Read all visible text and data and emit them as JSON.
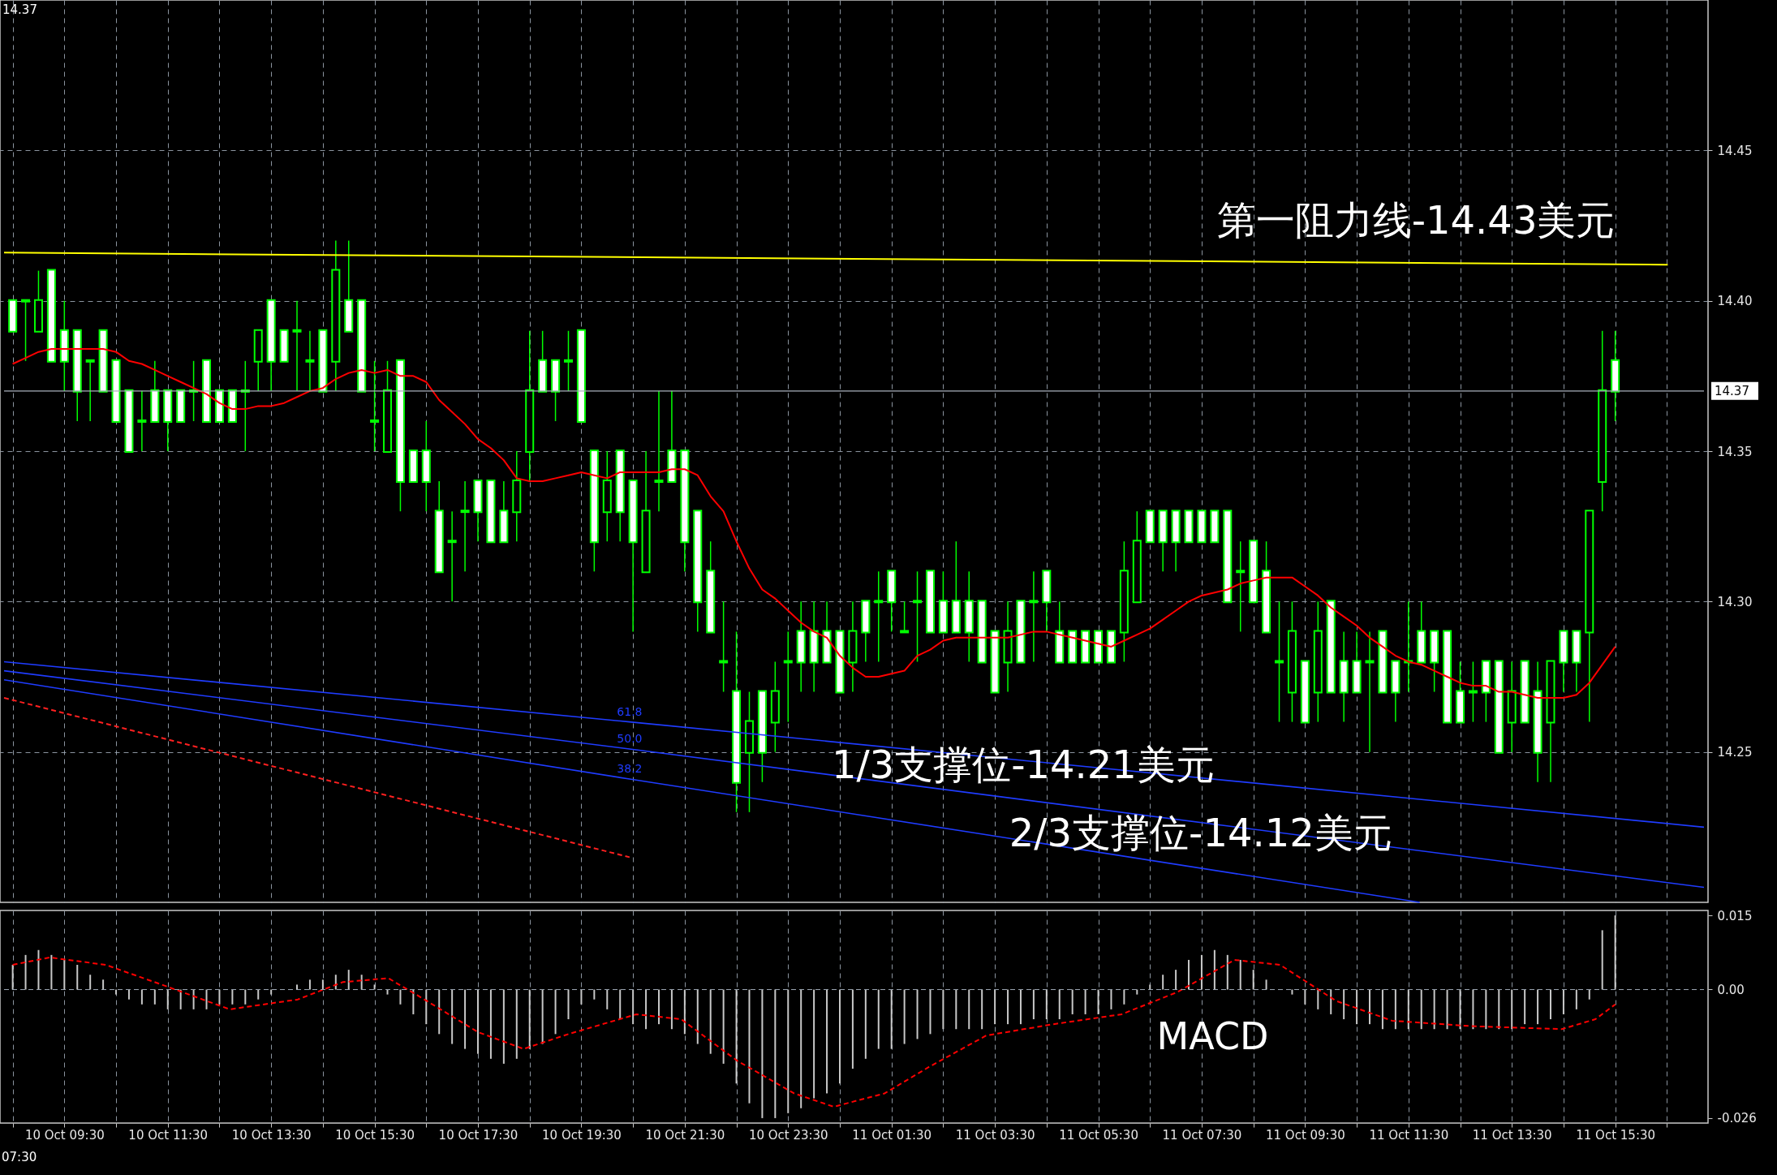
{
  "chart_data": [
    {
      "type": "candlestick",
      "x": [
        "--10-10T08:30",
        "--10-10T08:45",
        "--10-10T09:00",
        "--10-10T09:15",
        "--10-10T09:30",
        "--10-10T09:45",
        "--10-10T10:00",
        "--10-10T10:15",
        "--10-10T10:30",
        "--10-10T10:45",
        "--10-10T11:00",
        "--10-10T11:15",
        "--10-10T11:30",
        "--10-10T11:45",
        "--10-10T12:00",
        "--10-10T12:15",
        "--10-10T12:30",
        "--10-10T12:45",
        "--10-10T13:00",
        "--10-10T13:15",
        "--10-10T13:30",
        "--10-10T13:45",
        "--10-10T14:00",
        "--10-10T14:15",
        "--10-10T14:30",
        "--10-10T14:45",
        "--10-10T15:00",
        "--10-10T15:15",
        "--10-10T15:30",
        "--10-10T15:45",
        "--10-10T16:00",
        "--10-10T16:15",
        "--10-10T16:30",
        "--10-10T16:45",
        "--10-10T17:00",
        "--10-10T17:15",
        "--10-10T17:30",
        "--10-10T17:45",
        "--10-10T18:00",
        "--10-10T18:15",
        "--10-10T18:30",
        "--10-10T18:45",
        "--10-10T19:00",
        "--10-10T19:15",
        "--10-10T19:30",
        "--10-10T19:45",
        "--10-10T20:00",
        "--10-10T20:15",
        "--10-10T20:30",
        "--10-10T20:45",
        "--10-10T21:00",
        "--10-10T21:15",
        "--10-10T21:30",
        "--10-10T21:45",
        "--10-10T22:00",
        "--10-10T22:15",
        "--10-10T22:30",
        "--10-10T22:45",
        "--10-10T23:00",
        "--10-10T23:15",
        "--10-10T23:30",
        "--10-10T23:45",
        "--10-11T00:00",
        "--10-11T00:15",
        "--10-11T00:30",
        "--10-11T00:45",
        "--10-11T01:00",
        "--10-11T01:15",
        "--10-11T01:30",
        "--10-11T01:45",
        "--10-11T02:00",
        "--10-11T02:15",
        "--10-11T02:30",
        "--10-11T02:45",
        "--10-11T03:00",
        "--10-11T03:15",
        "--10-11T03:30",
        "--10-11T03:45",
        "--10-11T04:00",
        "--10-11T04:15",
        "--10-11T04:30",
        "--10-11T04:45",
        "--10-11T05:00",
        "--10-11T05:15",
        "--10-11T05:30",
        "--10-11T05:45",
        "--10-11T06:00",
        "--10-11T06:15",
        "--10-11T06:30",
        "--10-11T06:45",
        "--10-11T07:00",
        "--10-11T07:15",
        "--10-11T07:30",
        "--10-11T07:45",
        "--10-11T08:00",
        "--10-11T08:15",
        "--10-11T08:30",
        "--10-11T08:45",
        "--10-11T09:00",
        "--10-11T09:15",
        "--10-11T09:30",
        "--10-11T09:45",
        "--10-11T10:00",
        "--10-11T10:15",
        "--10-11T10:30",
        "--10-11T10:45",
        "--10-11T11:00",
        "--10-11T11:15",
        "--10-11T11:30",
        "--10-11T11:45",
        "--10-11T12:00",
        "--10-11T12:15",
        "--10-11T12:30",
        "--10-11T12:45",
        "--10-11T13:00",
        "--10-11T13:15",
        "--10-11T13:30",
        "--10-11T13:45",
        "--10-11T14:00",
        "--10-11T14:15",
        "--10-11T14:30",
        "--10-11T14:45",
        "--10-11T15:00",
        "--10-11T15:15",
        "--10-11T15:30"
      ],
      "ohlc": [
        [
          14.4,
          14.4,
          14.39,
          14.39
        ],
        [
          14.4,
          14.4,
          14.38,
          14.4
        ],
        [
          14.39,
          14.41,
          14.39,
          14.4
        ],
        [
          14.41,
          14.41,
          14.38,
          14.38
        ],
        [
          14.39,
          14.4,
          14.37,
          14.38
        ],
        [
          14.39,
          14.39,
          14.36,
          14.37
        ],
        [
          14.38,
          14.38,
          14.36,
          14.38
        ],
        [
          14.39,
          14.39,
          14.37,
          14.37
        ],
        [
          14.38,
          14.38,
          14.36,
          14.36
        ],
        [
          14.37,
          14.37,
          14.35,
          14.35
        ],
        [
          14.36,
          14.37,
          14.35,
          14.36
        ],
        [
          14.37,
          14.38,
          14.36,
          14.36
        ],
        [
          14.37,
          14.37,
          14.35,
          14.36
        ],
        [
          14.37,
          14.37,
          14.36,
          14.36
        ],
        [
          14.37,
          14.38,
          14.36,
          14.37
        ],
        [
          14.38,
          14.38,
          14.36,
          14.36
        ],
        [
          14.37,
          14.37,
          14.36,
          14.36
        ],
        [
          14.37,
          14.37,
          14.36,
          14.36
        ],
        [
          14.37,
          14.38,
          14.35,
          14.37
        ],
        [
          14.38,
          14.39,
          14.37,
          14.39
        ],
        [
          14.4,
          14.4,
          14.37,
          14.38
        ],
        [
          14.39,
          14.39,
          14.38,
          14.38
        ],
        [
          14.39,
          14.4,
          14.37,
          14.39
        ],
        [
          14.38,
          14.39,
          14.37,
          14.38
        ],
        [
          14.39,
          14.39,
          14.37,
          14.37
        ],
        [
          14.38,
          14.42,
          14.37,
          14.41
        ],
        [
          14.4,
          14.42,
          14.39,
          14.39
        ],
        [
          14.4,
          14.4,
          14.37,
          14.37
        ],
        [
          14.36,
          14.38,
          14.35,
          14.36
        ],
        [
          14.35,
          14.38,
          14.35,
          14.37
        ],
        [
          14.38,
          14.38,
          14.33,
          14.34
        ],
        [
          14.35,
          14.35,
          14.34,
          14.34
        ],
        [
          14.35,
          14.36,
          14.33,
          14.34
        ],
        [
          14.33,
          14.34,
          14.31,
          14.31
        ],
        [
          14.32,
          14.33,
          14.3,
          14.32
        ],
        [
          14.33,
          14.34,
          14.31,
          14.33
        ],
        [
          14.34,
          14.34,
          14.32,
          14.33
        ],
        [
          14.34,
          14.34,
          14.32,
          14.32
        ],
        [
          14.33,
          14.34,
          14.32,
          14.32
        ],
        [
          14.33,
          14.35,
          14.32,
          14.34
        ],
        [
          14.35,
          14.39,
          14.34,
          14.37
        ],
        [
          14.38,
          14.39,
          14.37,
          14.37
        ],
        [
          14.38,
          14.38,
          14.36,
          14.37
        ],
        [
          14.38,
          14.39,
          14.37,
          14.38
        ],
        [
          14.39,
          14.39,
          14.36,
          14.36
        ],
        [
          14.35,
          14.35,
          14.31,
          14.32
        ],
        [
          14.33,
          14.35,
          14.32,
          14.34
        ],
        [
          14.35,
          14.35,
          14.32,
          14.33
        ],
        [
          14.34,
          14.34,
          14.29,
          14.32
        ],
        [
          14.31,
          14.35,
          14.31,
          14.33
        ],
        [
          14.34,
          14.37,
          14.33,
          14.34
        ],
        [
          14.35,
          14.37,
          14.34,
          14.34
        ],
        [
          14.35,
          14.35,
          14.31,
          14.32
        ],
        [
          14.33,
          14.33,
          14.29,
          14.3
        ],
        [
          14.31,
          14.32,
          14.29,
          14.29
        ],
        [
          14.28,
          14.3,
          14.27,
          14.28
        ],
        [
          14.27,
          14.29,
          14.23,
          14.24
        ],
        [
          14.25,
          14.27,
          14.23,
          14.26
        ],
        [
          14.27,
          14.27,
          14.24,
          14.25
        ],
        [
          14.26,
          14.28,
          14.25,
          14.27
        ],
        [
          14.28,
          14.29,
          14.26,
          14.28
        ],
        [
          14.29,
          14.3,
          14.27,
          14.28
        ],
        [
          14.29,
          14.3,
          14.27,
          14.28
        ],
        [
          14.29,
          14.3,
          14.28,
          14.28
        ],
        [
          14.29,
          14.29,
          14.27,
          14.27
        ],
        [
          14.28,
          14.3,
          14.27,
          14.29
        ],
        [
          14.3,
          14.3,
          14.28,
          14.29
        ],
        [
          14.3,
          14.31,
          14.28,
          14.3
        ],
        [
          14.31,
          14.31,
          14.29,
          14.3
        ],
        [
          14.29,
          14.3,
          14.29,
          14.29
        ],
        [
          14.3,
          14.31,
          14.28,
          14.3
        ],
        [
          14.31,
          14.31,
          14.29,
          14.29
        ],
        [
          14.3,
          14.31,
          14.29,
          14.29
        ],
        [
          14.3,
          14.32,
          14.29,
          14.29
        ],
        [
          14.3,
          14.31,
          14.28,
          14.29
        ],
        [
          14.3,
          14.3,
          14.28,
          14.28
        ],
        [
          14.29,
          14.29,
          14.27,
          14.27
        ],
        [
          14.28,
          14.3,
          14.27,
          14.29
        ],
        [
          14.3,
          14.3,
          14.28,
          14.28
        ],
        [
          14.3,
          14.31,
          14.28,
          14.3
        ],
        [
          14.31,
          14.31,
          14.29,
          14.3
        ],
        [
          14.29,
          14.3,
          14.28,
          14.28
        ],
        [
          14.29,
          14.29,
          14.28,
          14.28
        ],
        [
          14.29,
          14.29,
          14.28,
          14.28
        ],
        [
          14.29,
          14.29,
          14.28,
          14.28
        ],
        [
          14.29,
          14.29,
          14.28,
          14.28
        ],
        [
          14.29,
          14.32,
          14.28,
          14.31
        ],
        [
          14.3,
          14.33,
          14.3,
          14.32
        ],
        [
          14.33,
          14.33,
          14.32,
          14.32
        ],
        [
          14.33,
          14.33,
          14.31,
          14.32
        ],
        [
          14.33,
          14.33,
          14.31,
          14.32
        ],
        [
          14.33,
          14.33,
          14.32,
          14.32
        ],
        [
          14.33,
          14.33,
          14.32,
          14.32
        ],
        [
          14.33,
          14.33,
          14.32,
          14.32
        ],
        [
          14.33,
          14.33,
          14.3,
          14.3
        ],
        [
          14.31,
          14.32,
          14.29,
          14.31
        ],
        [
          14.32,
          14.32,
          14.3,
          14.3
        ],
        [
          14.31,
          14.32,
          14.29,
          14.29
        ],
        [
          14.28,
          14.3,
          14.26,
          14.28
        ],
        [
          14.27,
          14.3,
          14.26,
          14.29
        ],
        [
          14.28,
          14.28,
          14.26,
          14.26
        ],
        [
          14.27,
          14.3,
          14.26,
          14.29
        ],
        [
          14.3,
          14.3,
          14.27,
          14.27
        ],
        [
          14.28,
          14.29,
          14.26,
          14.27
        ],
        [
          14.28,
          14.29,
          14.27,
          14.27
        ],
        [
          14.28,
          14.29,
          14.25,
          14.28
        ],
        [
          14.29,
          14.29,
          14.27,
          14.27
        ],
        [
          14.28,
          14.28,
          14.26,
          14.27
        ],
        [
          14.28,
          14.3,
          14.27,
          14.28
        ],
        [
          14.29,
          14.3,
          14.28,
          14.28
        ],
        [
          14.29,
          14.29,
          14.27,
          14.28
        ],
        [
          14.29,
          14.29,
          14.26,
          14.26
        ],
        [
          14.27,
          14.28,
          14.26,
          14.26
        ],
        [
          14.27,
          14.28,
          14.26,
          14.27
        ],
        [
          14.28,
          14.28,
          14.26,
          14.27
        ],
        [
          14.28,
          14.28,
          14.25,
          14.25
        ],
        [
          14.26,
          14.28,
          14.25,
          14.27
        ],
        [
          14.28,
          14.28,
          14.26,
          14.26
        ],
        [
          14.27,
          14.28,
          14.24,
          14.25
        ],
        [
          14.26,
          14.28,
          14.24,
          14.28
        ],
        [
          14.29,
          14.29,
          14.27,
          14.28
        ],
        [
          14.29,
          14.29,
          14.27,
          14.28
        ],
        [
          14.29,
          14.33,
          14.26,
          14.33
        ],
        [
          14.34,
          14.39,
          14.33,
          14.37
        ],
        [
          14.38,
          14.39,
          14.36,
          14.37
        ]
      ],
      "color": "#00ff00",
      "series": [
        {
          "type": "line",
          "color": "#ff0000",
          "values": [
            14.379,
            14.381,
            14.383,
            14.384,
            14.384,
            14.384,
            14.384,
            14.384,
            14.383,
            14.38,
            14.379,
            14.377,
            14.375,
            14.373,
            14.371,
            14.369,
            14.366,
            14.364,
            14.364,
            14.365,
            14.365,
            14.366,
            14.368,
            14.37,
            14.371,
            14.374,
            14.376,
            14.377,
            14.376,
            14.377,
            14.375,
            14.375,
            14.373,
            14.367,
            14.363,
            14.359,
            14.354,
            14.351,
            14.347,
            14.341,
            14.34,
            14.34,
            14.341,
            14.342,
            14.343,
            14.342,
            14.341,
            14.343,
            14.343,
            14.343,
            14.343,
            14.344,
            14.344,
            14.342,
            14.335,
            14.33,
            14.32,
            14.311,
            14.304,
            14.301,
            14.297,
            14.293,
            14.29,
            14.288,
            14.282,
            14.278,
            14.275,
            14.275,
            14.276,
            14.277,
            14.282,
            14.284,
            14.287,
            14.288,
            14.288,
            14.288,
            14.288,
            14.288,
            14.289,
            14.29,
            14.29,
            14.289,
            14.288,
            14.287,
            14.286,
            14.285,
            14.287,
            14.289,
            14.291,
            14.294,
            14.297,
            14.3,
            14.302,
            14.303,
            14.304,
            14.306,
            14.307,
            14.308,
            14.308,
            14.308,
            14.305,
            14.302,
            14.298,
            14.295,
            14.292,
            14.288,
            14.285,
            14.282,
            14.28,
            14.279,
            14.277,
            14.275,
            14.273,
            14.272,
            14.272,
            14.27,
            14.27,
            14.269,
            14.268,
            14.268,
            14.268,
            14.269,
            14.273,
            14.279,
            14.285
          ]
        },
        {
          "type": "line",
          "color": "#ffff00",
          "x": [
            "--10-10T08:20",
            "--10-11T16:31"
          ],
          "values": [
            14.416,
            14.412
          ]
        },
        {
          "type": "line",
          "name": "61.8",
          "color": "#1f3cff",
          "x": [
            "--10-10T08:20",
            "--10-10T20:26",
            "--10-11T17:13"
          ],
          "values": [
            14.28,
            14.26,
            14.225
          ]
        },
        {
          "type": "line",
          "name": "50.0",
          "color": "#1f3cff",
          "x": [
            "--10-10T08:20",
            "--10-10T20:26",
            "--10-11T17:13"
          ],
          "values": [
            14.277,
            14.251,
            14.205
          ]
        },
        {
          "type": "line",
          "name": "38.2",
          "color": "#1f3cff",
          "x": [
            "--10-10T08:20",
            "--10-10T20:26",
            "--10-11T11:43"
          ],
          "values": [
            14.274,
            14.241,
            14.2
          ]
        },
        {
          "type": "line",
          "color": "#ff2020",
          "line_style": "dashed",
          "x": [
            "--10-10T08:20",
            "--10-10T20:26"
          ],
          "values": [
            14.268,
            14.215
          ]
        }
      ],
      "xlim": [
        "--10-10T08:20",
        "--10-11T17:13"
      ],
      "xticks": [
        {
          "value": "--10-10T08:30",
          "label": null
        },
        {
          "value": "--10-10T09:30",
          "label": null
        },
        {
          "value": "--10-10T10:30",
          "label": null
        },
        {
          "value": "--10-10T11:30",
          "label": null
        },
        {
          "value": "--10-10T12:30",
          "label": null
        },
        {
          "value": "--10-10T13:30",
          "label": null
        },
        {
          "value": "--10-10T14:30",
          "label": null
        },
        {
          "value": "--10-10T15:30",
          "label": null
        },
        {
          "value": "--10-10T16:30",
          "label": null
        },
        {
          "value": "--10-10T17:30",
          "label": null
        },
        {
          "value": "--10-10T18:30",
          "label": null
        },
        {
          "value": "--10-10T19:30",
          "label": null
        },
        {
          "value": "--10-10T20:30",
          "label": null
        },
        {
          "value": "--10-10T21:30",
          "label": null
        },
        {
          "value": "--10-10T22:30",
          "label": null
        },
        {
          "value": "--10-10T23:30",
          "label": null
        },
        {
          "value": "--10-11T00:30",
          "label": null
        },
        {
          "value": "--10-11T01:30",
          "label": null
        },
        {
          "value": "--10-11T02:30",
          "label": null
        },
        {
          "value": "--10-11T03:30",
          "label": null
        },
        {
          "value": "--10-11T04:30",
          "label": null
        },
        {
          "value": "--10-11T05:30",
          "label": null
        },
        {
          "value": "--10-11T06:30",
          "label": null
        },
        {
          "value": "--10-11T07:30",
          "label": null
        },
        {
          "value": "--10-11T08:30",
          "label": null
        },
        {
          "value": "--10-11T09:30",
          "label": null
        },
        {
          "value": "--10-11T10:30",
          "label": null
        },
        {
          "value": "--10-11T11:30",
          "label": null
        },
        {
          "value": "--10-11T12:30",
          "label": null
        },
        {
          "value": "--10-11T13:30",
          "label": null
        },
        {
          "value": "--10-11T14:30",
          "label": null
        },
        {
          "value": "--10-11T15:30",
          "label": null
        },
        {
          "value": "--10-11T16:30",
          "label": null
        }
      ],
      "ylim": [
        14.2,
        14.5
      ],
      "yticks": [
        14.25,
        {
          "value": 14.3,
          "label": "14.30"
        },
        14.35,
        {
          "value": 14.4,
          "label": "14.40"
        },
        14.45
      ],
      "ref_lines": [
        {
          "axis": "y",
          "value": 14.37,
          "label": "14.37",
          "color": "#a9b0bc"
        }
      ],
      "annotations": [
        "14.37",
        "第一阻力线-14.43美元",
        "1/3支撑位-14.21美元",
        "2/3支撑位-14.12美元"
      ],
      "grid": true,
      "tick_labels": "y"
    },
    {
      "type": "bar",
      "x": [
        "--10-10T08:30",
        "--10-10T08:45",
        "--10-10T09:00",
        "--10-10T09:15",
        "--10-10T09:30",
        "--10-10T09:45",
        "--10-10T10:00",
        "--10-10T10:15",
        "--10-10T10:30",
        "--10-10T10:45",
        "--10-10T11:00",
        "--10-10T11:15",
        "--10-10T11:30",
        "--10-10T11:45",
        "--10-10T12:00",
        "--10-10T12:15",
        "--10-10T12:30",
        "--10-10T12:45",
        "--10-10T13:00",
        "--10-10T13:15",
        "--10-10T13:30",
        "--10-10T13:45",
        "--10-10T14:00",
        "--10-10T14:15",
        "--10-10T14:30",
        "--10-10T14:45",
        "--10-10T15:00",
        "--10-10T15:15",
        "--10-10T15:30",
        "--10-10T15:45",
        "--10-10T16:00",
        "--10-10T16:15",
        "--10-10T16:30",
        "--10-10T16:45",
        "--10-10T17:00",
        "--10-10T17:15",
        "--10-10T17:30",
        "--10-10T17:45",
        "--10-10T18:00",
        "--10-10T18:15",
        "--10-10T18:30",
        "--10-10T18:45",
        "--10-10T19:00",
        "--10-10T19:15",
        "--10-10T19:30",
        "--10-10T19:45",
        "--10-10T20:00",
        "--10-10T20:15",
        "--10-10T20:30",
        "--10-10T20:45",
        "--10-10T21:00",
        "--10-10T21:15",
        "--10-10T21:30",
        "--10-10T21:45",
        "--10-10T22:00",
        "--10-10T22:15",
        "--10-10T22:30",
        "--10-10T22:45",
        "--10-10T23:00",
        "--10-10T23:15",
        "--10-10T23:30",
        "--10-10T23:45",
        "--10-11T00:00",
        "--10-11T00:15",
        "--10-11T00:30",
        "--10-11T00:45",
        "--10-11T01:00",
        "--10-11T01:15",
        "--10-11T01:30",
        "--10-11T01:45",
        "--10-11T02:00",
        "--10-11T02:15",
        "--10-11T02:30",
        "--10-11T02:45",
        "--10-11T03:00",
        "--10-11T03:15",
        "--10-11T03:30",
        "--10-11T03:45",
        "--10-11T04:00",
        "--10-11T04:15",
        "--10-11T04:30",
        "--10-11T04:45",
        "--10-11T05:00",
        "--10-11T05:15",
        "--10-11T05:30",
        "--10-11T05:45",
        "--10-11T06:00",
        "--10-11T06:15",
        "--10-11T06:30",
        "--10-11T06:45",
        "--10-11T07:00",
        "--10-11T07:15",
        "--10-11T07:30",
        "--10-11T07:45",
        "--10-11T08:00",
        "--10-11T08:15",
        "--10-11T08:30",
        "--10-11T08:45",
        "--10-11T09:00",
        "--10-11T09:15",
        "--10-11T09:30",
        "--10-11T09:45",
        "--10-11T10:00",
        "--10-11T10:15",
        "--10-11T10:30",
        "--10-11T10:45",
        "--10-11T11:00",
        "--10-11T11:15",
        "--10-11T11:30",
        "--10-11T11:45",
        "--10-11T12:00",
        "--10-11T12:15",
        "--10-11T12:30",
        "--10-11T12:45",
        "--10-11T13:00",
        "--10-11T13:15",
        "--10-11T13:30",
        "--10-11T13:45",
        "--10-11T14:00",
        "--10-11T14:15",
        "--10-11T14:30",
        "--10-11T14:45",
        "--10-11T15:00",
        "--10-11T15:15",
        "--10-11T15:30"
      ],
      "series": [
        {
          "type": "bar",
          "color": "#c8c8c8",
          "values": [
            0.005,
            0.007,
            0.008,
            0.007,
            0.006,
            0.005,
            0.003,
            0.002,
            -0.001,
            -0.002,
            -0.003,
            -0.003,
            -0.004,
            -0.004,
            -0.004,
            -0.004,
            -0.003,
            -0.003,
            -0.003,
            -0.002,
            -0.001,
            0.0,
            0.001,
            0.002,
            0.002,
            0.003,
            0.004,
            0.003,
            0.001,
            -0.001,
            -0.003,
            -0.005,
            -0.007,
            -0.009,
            -0.011,
            -0.012,
            -0.013,
            -0.014,
            -0.015,
            -0.014,
            -0.012,
            -0.011,
            -0.009,
            -0.006,
            -0.003,
            -0.002,
            -0.004,
            -0.006,
            -0.007,
            -0.008,
            -0.007,
            -0.008,
            -0.009,
            -0.011,
            -0.013,
            -0.015,
            -0.019,
            -0.023,
            -0.026,
            -0.026,
            -0.025,
            -0.024,
            -0.022,
            -0.021,
            -0.019,
            -0.016,
            -0.014,
            -0.012,
            -0.012,
            -0.011,
            -0.01,
            -0.009,
            -0.008,
            -0.008,
            -0.008,
            -0.008,
            -0.007,
            -0.007,
            -0.007,
            -0.006,
            -0.006,
            -0.006,
            -0.005,
            -0.005,
            -0.005,
            -0.004,
            -0.003,
            -0.001,
            0.001,
            0.003,
            0.004,
            0.006,
            0.007,
            0.008,
            0.007,
            0.006,
            0.004,
            0.002,
            0.0,
            -0.001,
            -0.003,
            -0.004,
            -0.005,
            -0.006,
            -0.007,
            -0.007,
            -0.008,
            -0.008,
            -0.008,
            -0.008,
            -0.008,
            -0.008,
            -0.008,
            -0.008,
            -0.008,
            -0.008,
            -0.008,
            -0.007,
            -0.007,
            -0.006,
            -0.005,
            -0.004,
            -0.002,
            0.012,
            0.015
          ]
        },
        {
          "type": "line",
          "color": "#ff0000",
          "line_style": "dashed",
          "x": [
            "--10-10T08:30",
            "--10-10T09:13",
            "--10-10T10:18",
            "--10-10T11:23",
            "--10-10T12:42",
            "--10-10T14:01",
            "--10-10T14:53",
            "--10-10T15:46",
            "--10-10T16:25",
            "--10-10T17:30",
            "--10-10T18:23",
            "--10-10T19:15",
            "--10-10T20:34",
            "--10-10T21:26",
            "--10-10T22:31",
            "--10-10T23:37",
            "--10-11T00:23",
            "--10-11T01:22",
            "--10-11T02:14",
            "--10-11T03:20",
            "--10-11T04:38",
            "--10-11T05:57",
            "--10-11T07:02",
            "--10-11T08:08",
            "--10-11T09:01",
            "--10-11T10:06",
            "--10-11T11:11",
            "--10-11T12:43",
            "--10-11T14:28",
            "--10-11T15:07",
            "--10-11T15:30"
          ],
          "values": [
            0.005,
            0.0065,
            0.005,
            0.001,
            -0.004,
            -0.002,
            0.0015,
            0.0023,
            -0.0017,
            -0.0086,
            -0.012,
            -0.009,
            -0.005,
            -0.006,
            -0.0144,
            -0.021,
            -0.0237,
            -0.021,
            -0.0156,
            -0.0093,
            -0.007,
            -0.005,
            -0.0005,
            0.006,
            0.005,
            -0.0023,
            -0.0063,
            -0.0074,
            -0.008,
            -0.006,
            -0.003
          ]
        }
      ],
      "xlim": [
        "--10-10T08:20",
        "--10-11T17:13"
      ],
      "xticks": [
        {
          "value": "--10-10T08:30",
          "label": null
        },
        {
          "value": "--10-10T09:30",
          "label": "10 Oct 09:30"
        },
        {
          "value": "--10-10T10:30",
          "label": null
        },
        {
          "value": "--10-10T11:30",
          "label": "10 Oct 11:30"
        },
        {
          "value": "--10-10T12:30",
          "label": null
        },
        {
          "value": "--10-10T13:30",
          "label": "10 Oct 13:30"
        },
        {
          "value": "--10-10T14:30",
          "label": null
        },
        {
          "value": "--10-10T15:30",
          "label": "10 Oct 15:30"
        },
        {
          "value": "--10-10T16:30",
          "label": null
        },
        {
          "value": "--10-10T17:30",
          "label": "10 Oct 17:30"
        },
        {
          "value": "--10-10T18:30",
          "label": null
        },
        {
          "value": "--10-10T19:30",
          "label": "10 Oct 19:30"
        },
        {
          "value": "--10-10T20:30",
          "label": null
        },
        {
          "value": "--10-10T21:30",
          "label": "10 Oct 21:30"
        },
        {
          "value": "--10-10T22:30",
          "label": null
        },
        {
          "value": "--10-10T23:30",
          "label": "10 Oct 23:30"
        },
        {
          "value": "--10-11T00:30",
          "label": null
        },
        {
          "value": "--10-11T01:30",
          "label": "11 Oct 01:30"
        },
        {
          "value": "--10-11T02:30",
          "label": null
        },
        {
          "value": "--10-11T03:30",
          "label": "11 Oct 03:30"
        },
        {
          "value": "--10-11T04:30",
          "label": null
        },
        {
          "value": "--10-11T05:30",
          "label": "11 Oct 05:30"
        },
        {
          "value": "--10-11T06:30",
          "label": null
        },
        {
          "value": "--10-11T07:30",
          "label": "11 Oct 07:30"
        },
        {
          "value": "--10-11T08:30",
          "label": null
        },
        {
          "value": "--10-11T09:30",
          "label": "11 Oct 09:30"
        },
        {
          "value": "--10-11T10:30",
          "label": null
        },
        {
          "value": "--10-11T11:30",
          "label": "11 Oct 11:30"
        },
        {
          "value": "--10-11T12:30",
          "label": null
        },
        {
          "value": "--10-11T13:30",
          "label": "11 Oct 13:30"
        },
        {
          "value": "--10-11T14:30",
          "label": null
        },
        {
          "value": "--10-11T15:30",
          "label": "11 Oct 15:30"
        },
        {
          "value": "--10-11T16:30",
          "label": null
        }
      ],
      "ylim": [
        -0.027,
        0.016
      ],
      "yticks": [
        0.015,
        {
          "value": 0,
          "label": "0.00"
        },
        -0.026
      ],
      "ref_lines": [
        {
          "axis": "y",
          "value": 0,
          "color": "#9aa4b0",
          "line_style": "dashed"
        }
      ],
      "annotations": [
        "MACD",
        "07:30"
      ],
      "grid": "x"
    }
  ]
}
